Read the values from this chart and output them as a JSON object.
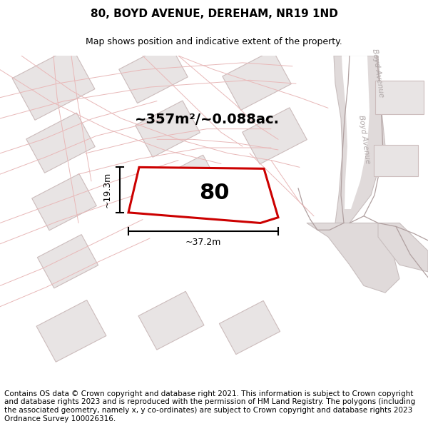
{
  "title": "80, BOYD AVENUE, DEREHAM, NR19 1ND",
  "subtitle": "Map shows position and indicative extent of the property.",
  "footer": "Contains OS data © Crown copyright and database right 2021. This information is subject to Crown copyright and database rights 2023 and is reproduced with the permission of HM Land Registry. The polygons (including the associated geometry, namely x, y co-ordinates) are subject to Crown copyright and database rights 2023 Ordnance Survey 100026316.",
  "area_label": "~357m²/~0.088ac.",
  "plot_number": "80",
  "dim_width": "~37.2m",
  "dim_height": "~19.3m",
  "map_bg": "#ffffff",
  "road_line_color": "#e8b8b8",
  "road_fill_color": "#f2e8e8",
  "building_fill": "#e8e4e4",
  "building_edge": "#ccbcbc",
  "plot_outline_color": "#cc0000",
  "road_gray_fill": "#e0dada",
  "road_gray_edge": "#c8bebe",
  "street_label_color": "#b0a8a8",
  "title_fontsize": 11,
  "subtitle_fontsize": 9,
  "footer_fontsize": 7.5,
  "area_fontsize": 14,
  "plot_num_fontsize": 22
}
